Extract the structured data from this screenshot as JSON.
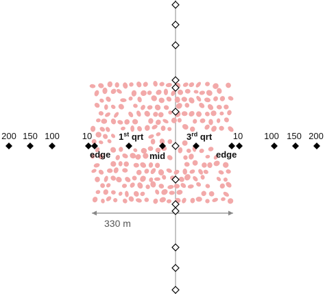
{
  "colors": {
    "background": "#ffffff",
    "plot_fill": "#f2a9a9",
    "marker_filled": "#000000",
    "marker_open_stroke": "#000000",
    "transect_line": "#888888",
    "scale_bar": "#888888"
  },
  "icons": {
    "filled_point": "filled-diamond-icon",
    "open_point": "open-diamond-icon"
  },
  "labels": {
    "scale": "330 m",
    "first_quarter": {
      "main": "1",
      "sup": "st",
      "rest": " qrt"
    },
    "third_quarter": {
      "main": "3",
      "sup": "rd",
      "rest": " qrt"
    },
    "mid": "mid",
    "edge_left": "edge",
    "edge_right": "edge"
  },
  "distance_labels": {
    "left": [
      "200",
      "150",
      "100",
      "10"
    ],
    "right": [
      "10",
      "100",
      "150",
      "200"
    ]
  }
}
